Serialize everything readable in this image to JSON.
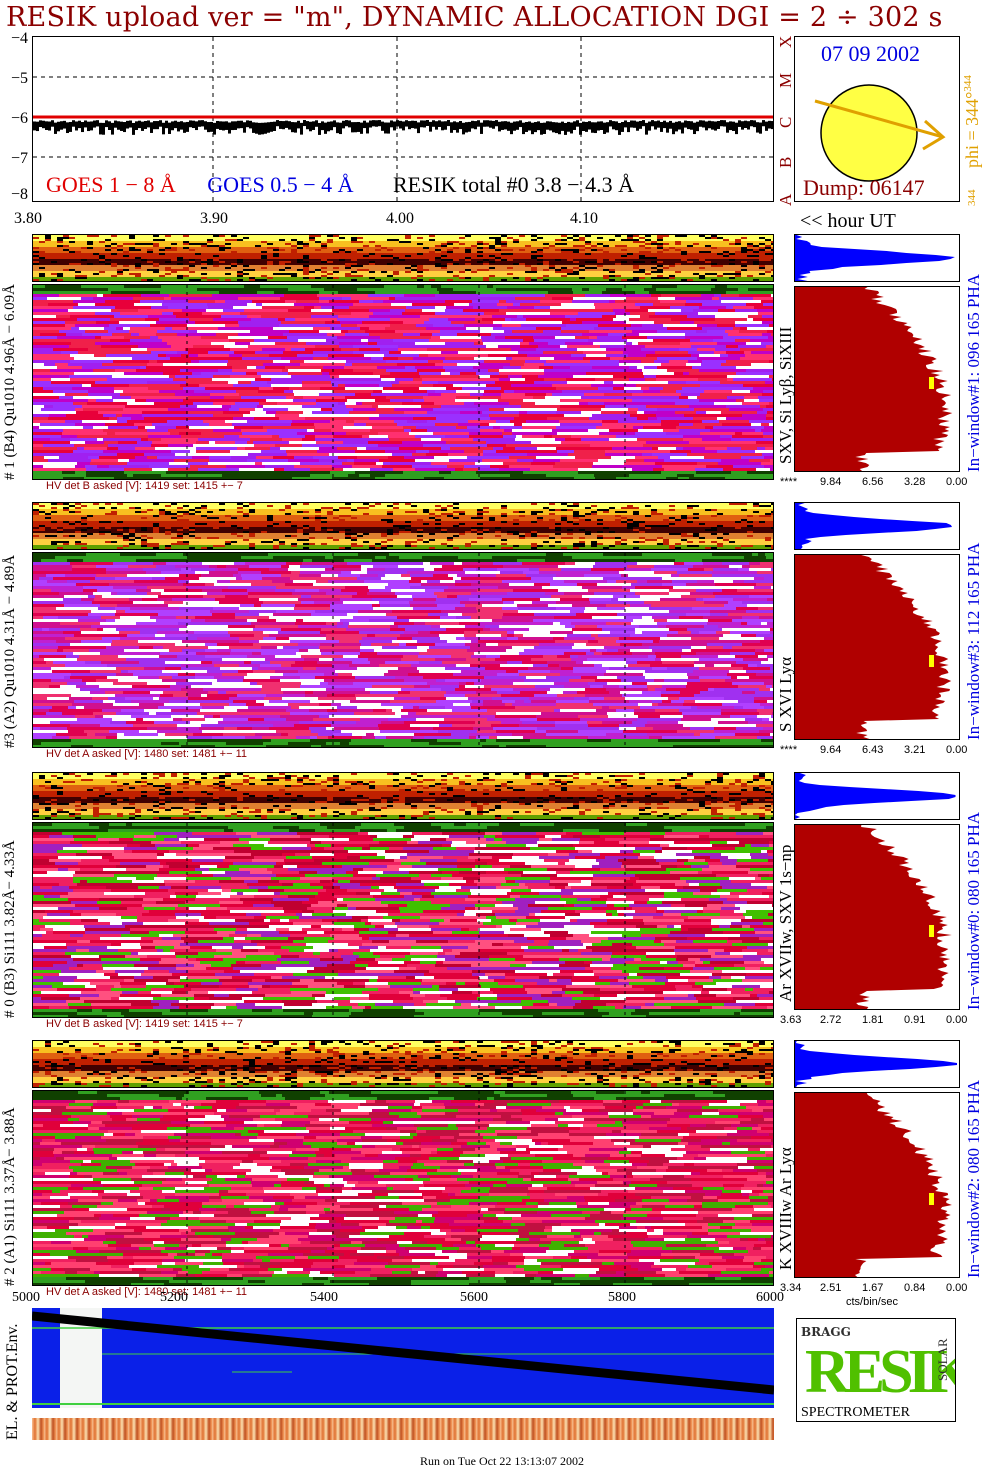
{
  "title": "RESIK upload ver = \"m\", DYNAMIC ALLOCATION  DGI =   2 ÷ 302 s",
  "colors": {
    "goes1": "#e00000",
    "goes2": "#0000e0",
    "dark": "#8b0000",
    "pha": "#b00000",
    "blue": "#0000ff",
    "sun": "#ffff44",
    "arrow": "#e0a000"
  },
  "lightcurve": {
    "y_ticks": [
      "−4",
      "−5",
      "−6",
      "−7",
      "−8"
    ],
    "legend_goes1": "GOES 1 − 8 Å",
    "legend_goes2": "GOES 0.5 − 4 Å",
    "legend_resik": "RESIK total #0  3.8 − 4.3 Å",
    "class_letters": [
      "X",
      "M",
      "C",
      "B",
      "A"
    ]
  },
  "sun": {
    "date": "07 09 2002",
    "dump": "Dump: 06147",
    "phi": "phi = 344°",
    "phi_sup": "344",
    "phi_low": "344"
  },
  "wavelength_axis": {
    "ticks": [
      "3.80",
      "3.90",
      "4.00",
      "4.10"
    ],
    "hour_label": "<< hour UT"
  },
  "channels": [
    {
      "left": "# 1 (B4) Qu1010 4.96Å − 6.09Å",
      "right": "SXV, Si Lyβ, SiXIII",
      "pha": "In−window#1:  096 165 PHA",
      "hv": "HV det B asked [V]:  1419 set:  1415  +−    7",
      "pha_ticks": [
        "****",
        "9.84",
        "6.56",
        "3.28",
        "0.00"
      ]
    },
    {
      "left": "#3 (A2) Qu1010  4.31Å − 4.89Å",
      "right": "S XVI Lyα",
      "pha": "In−window#3:  112 165 PHA",
      "hv": "HV det A asked [V]:  1480 set:  1481  +−    11",
      "pha_ticks": [
        "****",
        "9.64",
        "6.43",
        "3.21",
        "0.00"
      ]
    },
    {
      "left": "# 0 (B3) Si111  3.82Å− 4.33Å",
      "right": "Ar XVIIw,  SXV 1s−np",
      "pha": "In−window#0:  080 165 PHA",
      "hv": "HV det B asked [V]:  1419 set:  1415  +−    7",
      "pha_ticks": [
        "3.63",
        "2.72",
        "1.81",
        "0.91",
        "0.00"
      ]
    },
    {
      "left": "# 2 (A1) Si111  3.37Å− 3.88Å",
      "right": "K XVIIIw  Ar Lyα",
      "pha": "In−window#2:  080 165 PHA",
      "hv": "HV det A asked [V]:  1480 set:  1481  +−    11",
      "pha_ticks": [
        "3.34",
        "2.51",
        "1.67",
        "0.84",
        "0.00"
      ]
    }
  ],
  "pha_unit": "cts/bin/sec",
  "env": {
    "label": "EL. & PROT.Env.",
    "x_ticks": [
      "5000",
      "5200",
      "5400",
      "5600",
      "5800",
      "6000"
    ]
  },
  "logo": {
    "line1": "RESIK",
    "bragg": "BRAGG",
    "solar": "SOLAR",
    "spectrometer": "SPECTROMETER"
  },
  "footer": "Run on Tue Oct 22 13:13:07 2002"
}
